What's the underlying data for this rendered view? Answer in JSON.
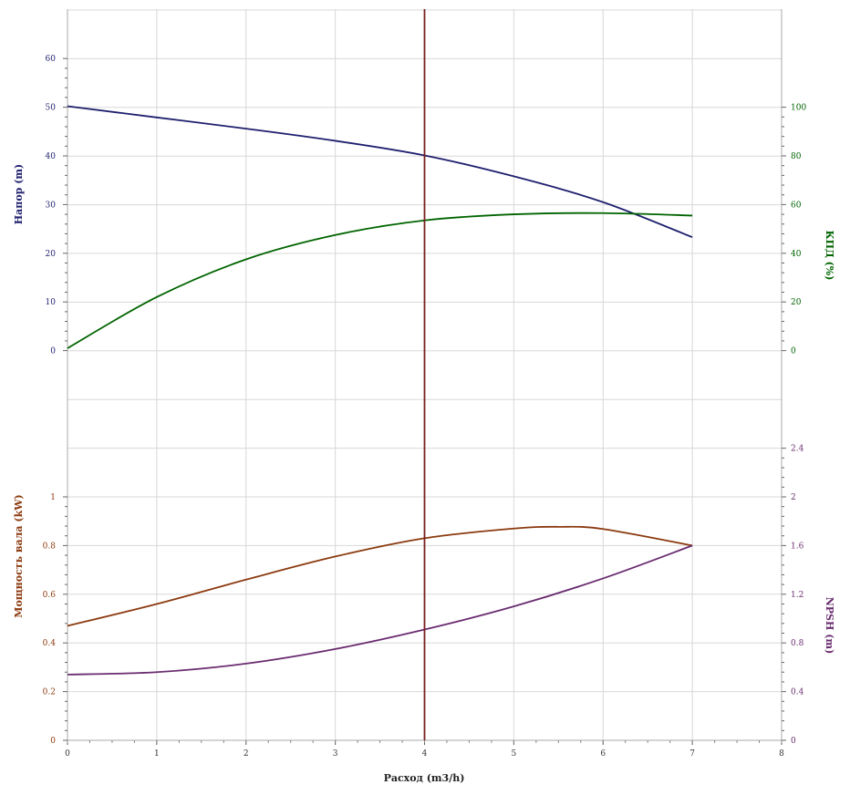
{
  "chart_data": {
    "type": "line",
    "xlabel": "Расход (m3/h)",
    "xlim": [
      0,
      8
    ],
    "x_ticks": [
      "0",
      "1",
      "2",
      "3",
      "4",
      "5",
      "6",
      "7",
      "8"
    ],
    "duty_line_x": 4,
    "colors": {
      "head": "#1f1f6e",
      "efficiency": "#006400",
      "power": "#8b3a0f",
      "npsh": "#6a2c70",
      "duty_line": "#7a1f1f"
    },
    "panels": {
      "top": {
        "left_axis": {
          "label": "Напор (m)",
          "ylim": [
            0,
            60
          ],
          "ticks": [
            "0",
            "10",
            "20",
            "30",
            "40",
            "50",
            "60"
          ]
        },
        "right_axis": {
          "label": "КПД (%)",
          "ylim": [
            0,
            100
          ],
          "ticks": [
            "0",
            "20",
            "40",
            "60",
            "80",
            "100"
          ]
        }
      },
      "bottom": {
        "left_axis": {
          "label": "Мощность вала (kW)",
          "ylim": [
            0,
            1
          ],
          "ticks": [
            "0",
            "0.2",
            "0.4",
            "0.6",
            "0.8",
            "1"
          ]
        },
        "right_axis": {
          "label": "NPSH (m)",
          "ylim": [
            0,
            2.4
          ],
          "ticks": [
            "0",
            "0.4",
            "0.8",
            "1.2",
            "1.6",
            "2",
            "2.4"
          ]
        }
      }
    },
    "series": [
      {
        "id": "head",
        "panel": "top",
        "axis": "left",
        "x": [
          0,
          1,
          2,
          3,
          4,
          5,
          6,
          7
        ],
        "values": [
          50.2,
          47.9,
          45.6,
          43.1,
          40.1,
          35.8,
          30.5,
          23.3
        ]
      },
      {
        "id": "efficiency",
        "panel": "top",
        "axis": "right",
        "x": [
          0,
          1,
          2,
          3,
          4,
          5,
          6,
          7
        ],
        "values": [
          1,
          22,
          37.5,
          47.5,
          53.5,
          56,
          56.5,
          55.5
        ]
      },
      {
        "id": "power",
        "panel": "bottom",
        "axis": "left",
        "x": [
          0,
          1,
          2,
          3,
          4,
          5,
          5.5,
          6,
          7
        ],
        "values": [
          0.47,
          0.56,
          0.66,
          0.755,
          0.83,
          0.87,
          0.877,
          0.868,
          0.8
        ]
      },
      {
        "id": "npsh",
        "panel": "bottom",
        "axis": "right",
        "x": [
          0,
          1,
          2,
          3,
          4,
          5,
          6,
          7
        ],
        "values": [
          0.54,
          0.56,
          0.63,
          0.75,
          0.91,
          1.1,
          1.33,
          1.6
        ]
      }
    ]
  }
}
